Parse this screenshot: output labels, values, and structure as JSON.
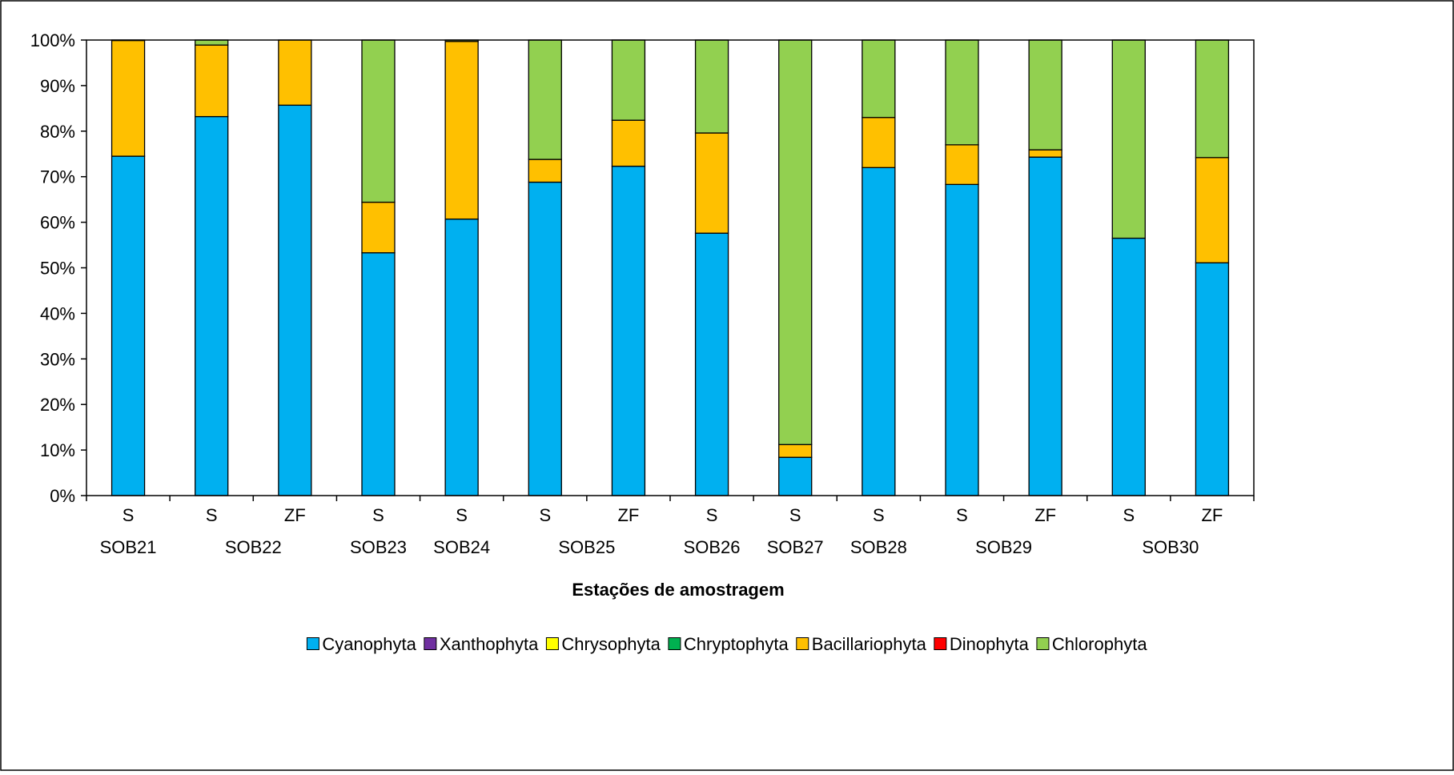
{
  "chart_data": {
    "type": "bar",
    "stacked": true,
    "normalized_percent": true,
    "title": "",
    "xlabel": "Estações de amostragem",
    "ylabel": "",
    "ylim": [
      0,
      100
    ],
    "y_ticks": [
      "0%",
      "10%",
      "20%",
      "30%",
      "40%",
      "50%",
      "60%",
      "70%",
      "80%",
      "90%",
      "100%"
    ],
    "grid": false,
    "legend_position": "bottom",
    "categories": [
      "S",
      "S",
      "ZF",
      "S",
      "S",
      "S",
      "ZF",
      "S",
      "S",
      "S",
      "S",
      "ZF",
      "S",
      "ZF"
    ],
    "category_groups": [
      {
        "label": "SOB21",
        "members": [
          0
        ]
      },
      {
        "label": "SOB22",
        "members": [
          1,
          2
        ]
      },
      {
        "label": "SOB23",
        "members": [
          3
        ]
      },
      {
        "label": "SOB24",
        "members": [
          4
        ]
      },
      {
        "label": "SOB25",
        "members": [
          5,
          6
        ]
      },
      {
        "label": "SOB26",
        "members": [
          7
        ]
      },
      {
        "label": "SOB27",
        "members": [
          8
        ]
      },
      {
        "label": "SOB28",
        "members": [
          9
        ]
      },
      {
        "label": "SOB29",
        "members": [
          10,
          11
        ]
      },
      {
        "label": "SOB30",
        "members": [
          12,
          13
        ]
      }
    ],
    "series": [
      {
        "name": "Cyanophyta",
        "color": "#00B0F0",
        "values": [
          74.5,
          83.2,
          85.7,
          53.3,
          60.7,
          68.8,
          72.3,
          57.6,
          8.4,
          72.0,
          68.3,
          74.3,
          56.5,
          51.1
        ]
      },
      {
        "name": "Xanthophyta",
        "color": "#7030A0",
        "values": [
          0,
          0,
          0,
          0,
          0,
          0,
          0,
          0,
          0,
          0,
          0,
          0,
          0,
          0
        ]
      },
      {
        "name": "Chrysophyta",
        "color": "#FFFF00",
        "values": [
          0,
          0,
          0,
          0,
          0,
          0,
          0,
          0,
          0,
          0,
          0,
          0,
          0,
          0
        ]
      },
      {
        "name": "Chryptophyta",
        "color": "#00B050",
        "values": [
          0,
          0,
          0,
          0,
          0,
          0,
          0,
          0,
          0,
          0,
          0,
          0,
          0,
          0
        ]
      },
      {
        "name": "Bacillariophyta",
        "color": "#FFC000",
        "values": [
          25.4,
          15.7,
          14.3,
          11.1,
          39.0,
          5.0,
          10.1,
          22.0,
          2.8,
          11.0,
          8.7,
          1.6,
          0,
          23.1
        ]
      },
      {
        "name": "Dinophyta",
        "color": "#FF0000",
        "values": [
          0,
          0,
          0,
          0,
          0,
          0,
          0,
          0,
          0,
          0,
          0,
          0,
          0,
          0
        ]
      },
      {
        "name": "Chlorophyta",
        "color": "#92D050",
        "values": [
          0.1,
          1.1,
          0,
          35.6,
          0.3,
          26.2,
          17.6,
          20.4,
          88.8,
          17.0,
          23.0,
          24.1,
          43.5,
          25.8
        ]
      }
    ]
  }
}
